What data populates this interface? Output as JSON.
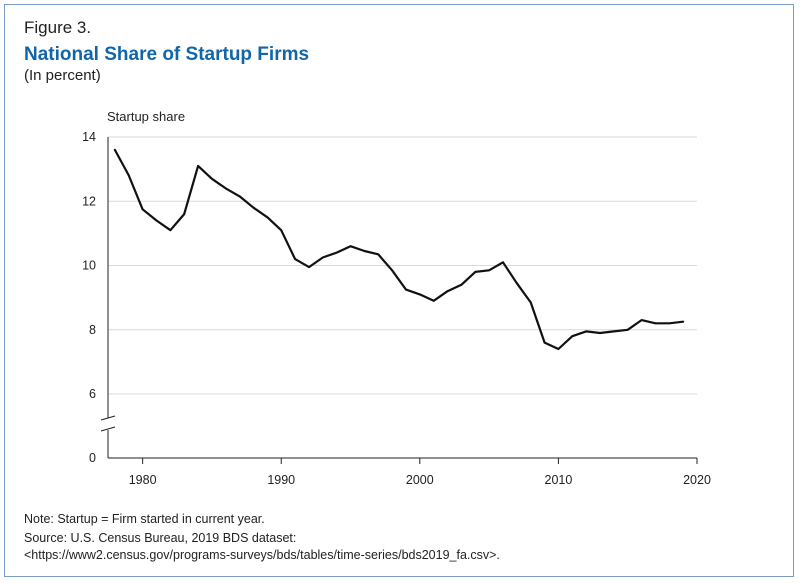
{
  "figure_label": "Figure 3.",
  "title": "National Share of Startup Firms",
  "subtitle": "(In percent)",
  "notes": [
    "Note: Startup = Firm started in current year.",
    "Source: U.S. Census Bureau, 2019 BDS dataset:",
    "<https://www2.census.gov/programs-surveys/bds/tables/time-series/bds2019_fa.csv>."
  ],
  "colors": {
    "title": "#1266a8",
    "line": "#111111",
    "grid": "#d9d9d9",
    "frame": "#7a9cc4"
  },
  "chart_data": {
    "type": "line",
    "ylabel": "Startup share",
    "ylim": [
      0,
      14
    ],
    "y_ticks": [
      0,
      6,
      8,
      10,
      12,
      14
    ],
    "y_axis_break": "between 0 and 6",
    "x_ticks": [
      1980,
      1990,
      2000,
      2010,
      2020
    ],
    "xlim": [
      1977.5,
      2020
    ],
    "grid": "horizontal",
    "series": [
      {
        "x": [
          1978,
          1979,
          1980,
          1981,
          1982,
          1983,
          1984,
          1985,
          1986,
          1987,
          1988,
          1989,
          1990,
          1991,
          1992,
          1993,
          1994,
          1995,
          1996,
          1997,
          1998,
          1999,
          2000,
          2001,
          2002,
          2003,
          2004,
          2005,
          2006,
          2007,
          2008,
          2009,
          2010,
          2011,
          2012,
          2013,
          2014,
          2015,
          2016,
          2017,
          2018,
          2019
        ],
        "y": [
          13.6,
          12.8,
          11.75,
          11.4,
          11.1,
          11.6,
          13.1,
          12.7,
          12.4,
          12.15,
          11.8,
          11.5,
          11.1,
          10.2,
          9.95,
          10.25,
          10.4,
          10.6,
          10.45,
          10.35,
          9.85,
          9.25,
          9.1,
          8.9,
          9.2,
          9.4,
          9.8,
          9.85,
          10.1,
          9.45,
          8.85,
          7.6,
          7.4,
          7.8,
          7.95,
          7.9,
          7.95,
          8.0,
          8.3,
          8.2,
          8.2,
          8.25
        ]
      }
    ]
  }
}
